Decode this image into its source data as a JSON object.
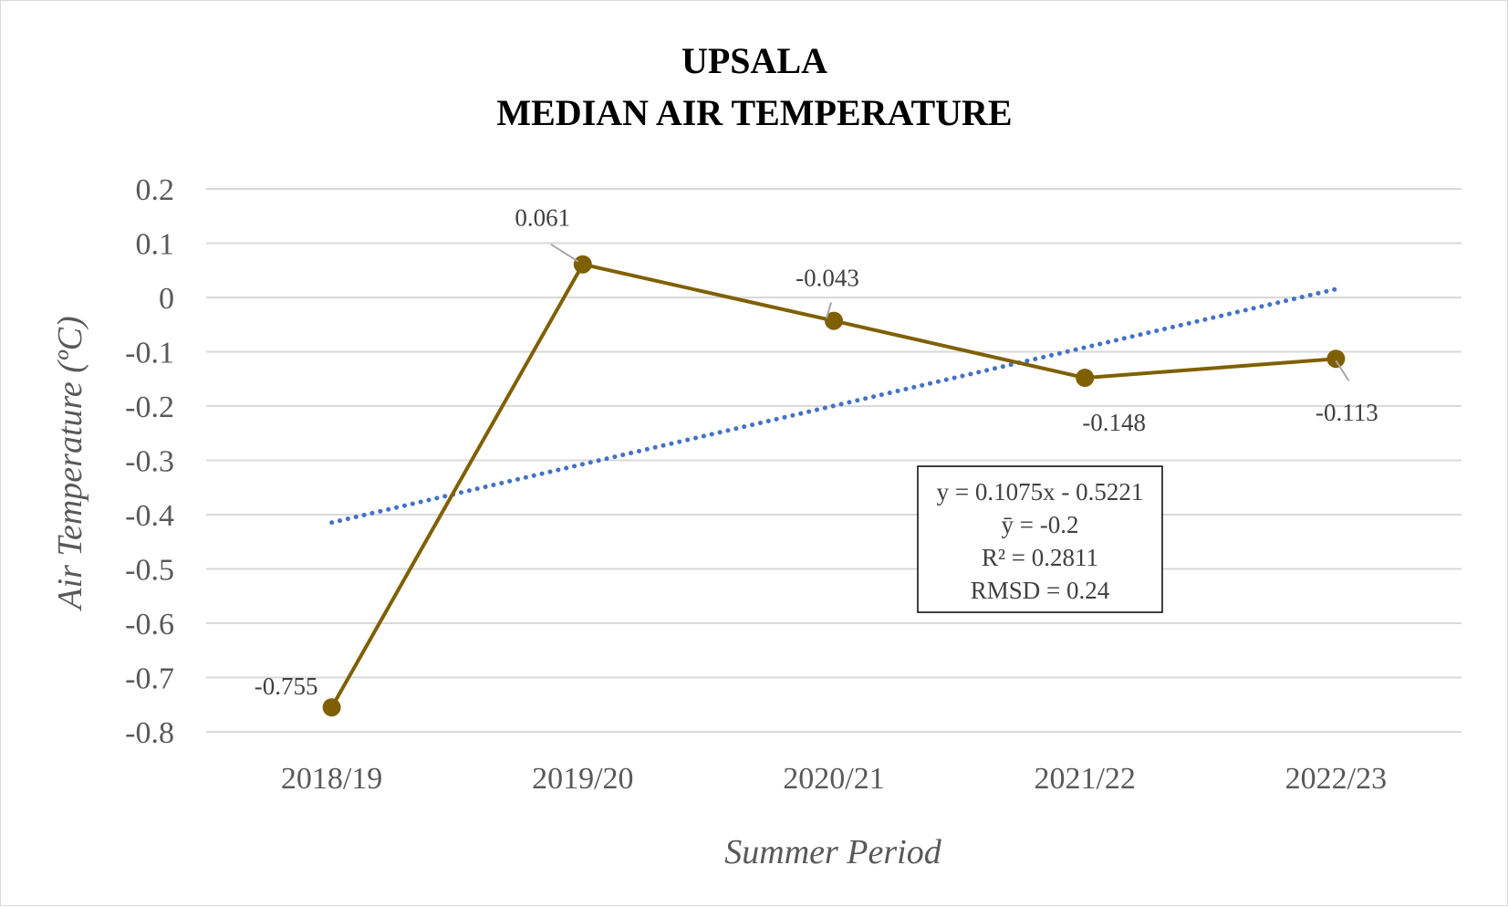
{
  "chart_data": {
    "type": "line",
    "title_lines": [
      "UPSALA",
      "MEDIAN AIR TEMPERATURE"
    ],
    "xlabel": "Summer Period",
    "ylabel": "Air Temperature (ºC)",
    "categories": [
      "2018/19",
      "2019/20",
      "2020/21",
      "2021/22",
      "2022/23"
    ],
    "series": [
      {
        "values": [
          -0.755,
          0.061,
          -0.043,
          -0.148,
          -0.113
        ],
        "color": "#7f6000"
      }
    ],
    "data_labels": [
      "-0.755",
      "0.061",
      "-0.043",
      "-0.148",
      "-0.113"
    ],
    "trendline": {
      "type": "linear",
      "slope": 0.1075,
      "intercept": -0.5221,
      "color": "#4472c4",
      "style": "dotted"
    },
    "stats_box": [
      "y = 0.1075x - 0.5221",
      "ȳ = -0.2",
      "R² = 0.2811",
      "RMSD = 0.24"
    ],
    "ylim": [
      -0.8,
      0.2
    ],
    "yticks": [
      0.2,
      0.1,
      0,
      -0.1,
      -0.2,
      -0.3,
      -0.4,
      -0.5,
      -0.6,
      -0.7,
      -0.8
    ],
    "ytick_labels": [
      "0.2",
      "0.1",
      "0",
      "-0.1",
      "-0.2",
      "-0.3",
      "-0.4",
      "-0.5",
      "-0.6",
      "-0.7",
      "-0.8"
    ],
    "grid": true,
    "legend": "none"
  }
}
